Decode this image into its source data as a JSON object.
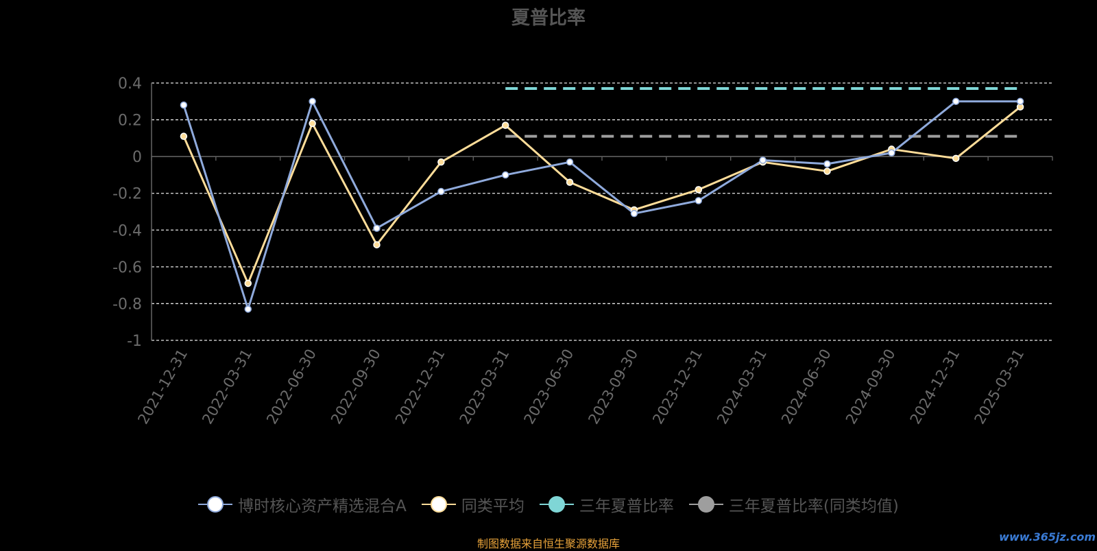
{
  "chart_data": {
    "type": "line",
    "title": "夏普比率",
    "categories": [
      "2021-12-31",
      "2022-03-31",
      "2022-06-30",
      "2022-09-30",
      "2022-12-31",
      "2023-03-31",
      "2023-06-30",
      "2023-09-30",
      "2023-12-31",
      "2024-03-31",
      "2024-06-30",
      "2024-09-30",
      "2024-12-31",
      "2025-03-31"
    ],
    "ylim": [
      -1,
      0.4
    ],
    "yticks": [
      0.4,
      0.2,
      0,
      -0.2,
      -0.4,
      -0.6,
      -0.8,
      -1
    ],
    "ytick_labels": [
      "0.4",
      "0.2",
      "0",
      "-0.2",
      "-0.4",
      "-0.6",
      "-0.8",
      "-1"
    ],
    "grid": "horizontal dashed",
    "legend_position": "bottom",
    "series": [
      {
        "name": "博时核心资产精选混合A",
        "color": "#8faadc",
        "marker": "white",
        "values": [
          0.28,
          -0.83,
          0.3,
          -0.39,
          -0.19,
          -0.1,
          -0.03,
          -0.31,
          -0.24,
          -0.02,
          -0.04,
          0.02,
          0.3,
          0.3
        ]
      },
      {
        "name": "同类平均",
        "color": "#ffdd99",
        "marker": "#ffdd99",
        "values": [
          0.11,
          -0.69,
          0.18,
          -0.48,
          -0.03,
          0.17,
          -0.14,
          -0.29,
          -0.18,
          -0.03,
          -0.08,
          0.04,
          -0.01,
          0.27
        ]
      }
    ],
    "reference_lines": [
      {
        "name": "三年夏普比率",
        "color": "#7fd6d6",
        "value": 0.37,
        "from": "2023-03-31",
        "to": "2025-03-31"
      },
      {
        "name": "三年夏普比率(同类均值)",
        "color": "#9e9e9e",
        "value": 0.11,
        "from": "2023-03-31",
        "to": "2025-03-31"
      }
    ]
  },
  "legend": [
    {
      "label": "博时核心资产精选混合A",
      "line_color": "#8faadc",
      "dot_color": "#ffffff",
      "dot_border": "#8faadc"
    },
    {
      "label": "同类平均",
      "line_color": "#ffdd99",
      "dot_color": "#ffffff",
      "dot_border": "#ffdd99"
    },
    {
      "label": "三年夏普比率",
      "line_color": "#7fd6d6",
      "dot_color": "#7fd6d6",
      "dot_border": "#7fd6d6"
    },
    {
      "label": "三年夏普比率(同类均值)",
      "line_color": "#9e9e9e",
      "dot_color": "#9e9e9e",
      "dot_border": "#9e9e9e"
    }
  ],
  "footer": "制图数据来自恒生聚源数据库",
  "watermark": "www.365jz.com"
}
